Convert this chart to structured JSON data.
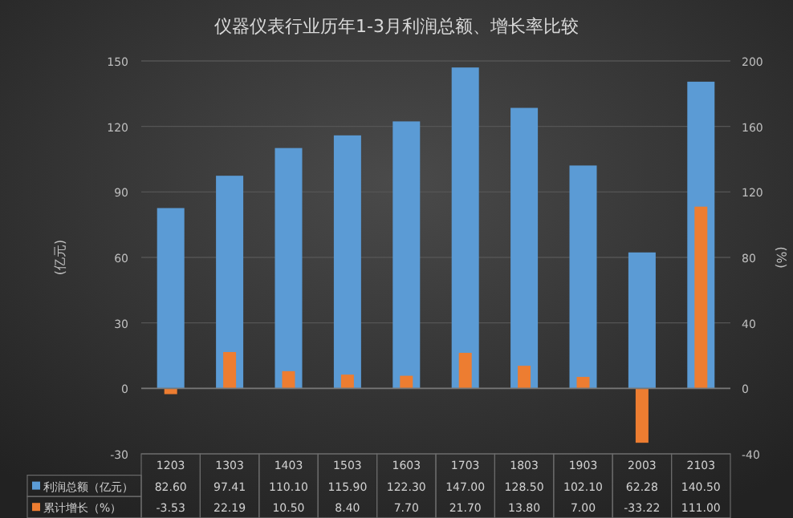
{
  "chart_data": {
    "type": "bar",
    "title": "仪器仪表行业历年1-3月利润总额、增长率比较",
    "ylabel": "(亿元)",
    "y2label": "(%)",
    "categories": [
      "1203",
      "1303",
      "1403",
      "1503",
      "1603",
      "1703",
      "1803",
      "1903",
      "2003",
      "2103"
    ],
    "series": [
      {
        "name": "利润总额（亿元）",
        "color": "#5b9bd5",
        "values": [
          82.6,
          97.41,
          110.1,
          115.9,
          122.3,
          147.0,
          128.5,
          102.1,
          62.28,
          140.5
        ],
        "value_labels": [
          "82.60",
          "97.41",
          "110.10",
          "115.90",
          "122.30",
          "147.00",
          "128.50",
          "102.10",
          "62.28",
          "140.50"
        ]
      },
      {
        "name": "累计增长（%）",
        "color": "#ed7d31",
        "axis": "y2",
        "values": [
          -3.53,
          22.19,
          10.5,
          8.4,
          7.7,
          21.7,
          13.8,
          7.0,
          -33.22,
          111.0
        ],
        "value_labels": [
          "-3.53",
          "22.19",
          "10.50",
          "8.40",
          "7.70",
          "21.70",
          "13.80",
          "7.00",
          "-33.22",
          "111.00"
        ]
      }
    ],
    "ylim": [
      -30,
      150
    ],
    "yticks": [
      -30,
      0,
      30,
      60,
      90,
      120,
      150
    ],
    "y2lim": [
      -40,
      200
    ],
    "y2ticks": [
      -40,
      0,
      40,
      80,
      120,
      160,
      200
    ],
    "grid": "y",
    "legend": "bottom"
  }
}
